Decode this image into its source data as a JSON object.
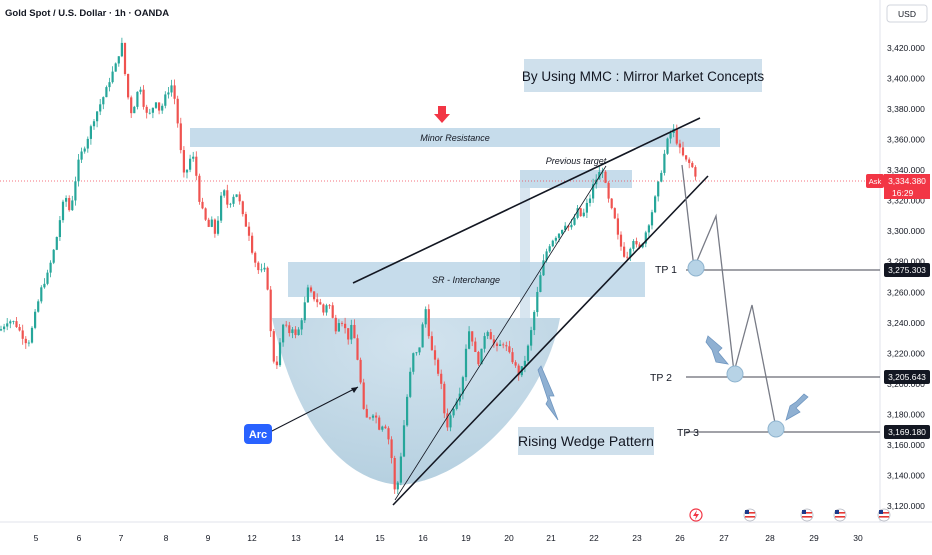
{
  "header": {
    "symbol_title": "Gold Spot / U.S. Dollar · 1h · OANDA",
    "currency": "USD"
  },
  "colors": {
    "up": "#26a69a",
    "down": "#ef5350",
    "zone": "#b9d4e6",
    "arc_fill": "#a9c9dc",
    "label_blue": "#2962ff",
    "ask_red": "#f23645",
    "line_dark": "#131722"
  },
  "annotations": {
    "mmc_title": "By Using MMC : Mirror Market Concepts",
    "minor_resistance": "Minor Resistance",
    "previous_target": "Previous target",
    "sr_interchange": "SR - Interchange",
    "arc_label": "Arc",
    "wedge_label": "Rising Wedge Pattern",
    "tp1": "TP 1",
    "tp2": "TP 2",
    "tp3": "TP 3"
  },
  "price_axis": {
    "ticks": [
      "3,420.000",
      "3,400.000",
      "3,380.000",
      "3,360.000",
      "3,340.000",
      "3,320.000",
      "3,300.000",
      "3,280.000",
      "3,260.000",
      "3,240.000",
      "3,220.000",
      "3,200.000",
      "3,180.000",
      "3,160.000",
      "3,140.000",
      "3,120.000"
    ],
    "ask_label": "Ask",
    "ask_price": "3,334.380",
    "countdown": "16:29",
    "tp1_price": "3,275.303",
    "tp2_price": "3,205.643",
    "tp3_price": "3,169.180"
  },
  "time_axis": {
    "labels": [
      "5",
      "6",
      "7",
      "8",
      "9",
      "12",
      "13",
      "14",
      "15",
      "16",
      "19",
      "20",
      "21",
      "22",
      "23",
      "26",
      "27",
      "28",
      "29",
      "30"
    ]
  },
  "chart_data": {
    "type": "candlestick",
    "title": "Gold Spot / U.S. Dollar · 1h · OANDA",
    "ylim": [
      3110,
      3435
    ],
    "y_ticks": [
      3420,
      3400,
      3380,
      3360,
      3340,
      3320,
      3300,
      3280,
      3260,
      3240,
      3220,
      3200,
      3180,
      3160,
      3140,
      3120
    ],
    "x_labels": [
      "5",
      "6",
      "7",
      "8",
      "9",
      "12",
      "13",
      "14",
      "15",
      "16",
      "19",
      "20",
      "21",
      "22",
      "23",
      "26",
      "27",
      "28",
      "29",
      "30"
    ],
    "price_path": [
      [
        0,
        3235
      ],
      [
        8,
        3242
      ],
      [
        15,
        3240
      ],
      [
        22,
        3232
      ],
      [
        28,
        3226
      ],
      [
        32,
        3236
      ],
      [
        36,
        3248
      ],
      [
        42,
        3264
      ],
      [
        48,
        3272
      ],
      [
        54,
        3288
      ],
      [
        58,
        3300
      ],
      [
        62,
        3316
      ],
      [
        66,
        3322
      ],
      [
        70,
        3312
      ],
      [
        74,
        3328
      ],
      [
        78,
        3344
      ],
      [
        82,
        3352
      ],
      [
        86,
        3358
      ],
      [
        90,
        3366
      ],
      [
        94,
        3374
      ],
      [
        98,
        3380
      ],
      [
        102,
        3386
      ],
      [
        106,
        3392
      ],
      [
        110,
        3400
      ],
      [
        114,
        3406
      ],
      [
        118,
        3412
      ],
      [
        121,
        3428
      ],
      [
        124,
        3408
      ],
      [
        128,
        3388
      ],
      [
        132,
        3376
      ],
      [
        136,
        3388
      ],
      [
        140,
        3396
      ],
      [
        144,
        3382
      ],
      [
        148,
        3374
      ],
      [
        152,
        3380
      ],
      [
        156,
        3386
      ],
      [
        160,
        3378
      ],
      [
        164,
        3386
      ],
      [
        168,
        3392
      ],
      [
        172,
        3396
      ],
      [
        176,
        3382
      ],
      [
        180,
        3356
      ],
      [
        184,
        3336
      ],
      [
        188,
        3342
      ],
      [
        192,
        3352
      ],
      [
        196,
        3338
      ],
      [
        200,
        3318
      ],
      [
        204,
        3310
      ],
      [
        208,
        3302
      ],
      [
        212,
        3306
      ],
      [
        216,
        3296
      ],
      [
        220,
        3320
      ],
      [
        224,
        3326
      ],
      [
        228,
        3316
      ],
      [
        232,
        3322
      ],
      [
        236,
        3326
      ],
      [
        240,
        3318
      ],
      [
        244,
        3306
      ],
      [
        248,
        3302
      ],
      [
        252,
        3288
      ],
      [
        256,
        3278
      ],
      [
        260,
        3272
      ],
      [
        264,
        3276
      ],
      [
        268,
        3262
      ],
      [
        272,
        3220
      ],
      [
        276,
        3210
      ],
      [
        280,
        3226
      ],
      [
        284,
        3242
      ],
      [
        288,
        3232
      ],
      [
        292,
        3238
      ],
      [
        296,
        3230
      ],
      [
        300,
        3238
      ],
      [
        304,
        3250
      ],
      [
        308,
        3262
      ],
      [
        312,
        3258
      ],
      [
        316,
        3255
      ],
      [
        320,
        3252
      ],
      [
        324,
        3246
      ],
      [
        328,
        3256
      ],
      [
        332,
        3244
      ],
      [
        336,
        3236
      ],
      [
        340,
        3244
      ],
      [
        344,
        3238
      ],
      [
        348,
        3230
      ],
      [
        352,
        3238
      ],
      [
        356,
        3224
      ],
      [
        360,
        3204
      ],
      [
        364,
        3180
      ],
      [
        368,
        3176
      ],
      [
        372,
        3182
      ],
      [
        376,
        3178
      ],
      [
        380,
        3170
      ],
      [
        384,
        3176
      ],
      [
        388,
        3166
      ],
      [
        392,
        3150
      ],
      [
        395,
        3128
      ],
      [
        398,
        3136
      ],
      [
        402,
        3160
      ],
      [
        406,
        3186
      ],
      [
        410,
        3206
      ],
      [
        414,
        3222
      ],
      [
        418,
        3218
      ],
      [
        422,
        3236
      ],
      [
        426,
        3250
      ],
      [
        430,
        3226
      ],
      [
        434,
        3216
      ],
      [
        438,
        3208
      ],
      [
        442,
        3196
      ],
      [
        446,
        3170
      ],
      [
        450,
        3178
      ],
      [
        454,
        3186
      ],
      [
        458,
        3192
      ],
      [
        462,
        3200
      ],
      [
        466,
        3224
      ],
      [
        470,
        3238
      ],
      [
        474,
        3222
      ],
      [
        478,
        3214
      ],
      [
        482,
        3222
      ],
      [
        486,
        3238
      ],
      [
        490,
        3232
      ],
      [
        494,
        3226
      ],
      [
        498,
        3222
      ],
      [
        502,
        3228
      ],
      [
        506,
        3224
      ],
      [
        510,
        3218
      ],
      [
        514,
        3214
      ],
      [
        518,
        3206
      ],
      [
        522,
        3210
      ],
      [
        526,
        3218
      ],
      [
        530,
        3230
      ],
      [
        534,
        3246
      ],
      [
        538,
        3262
      ],
      [
        542,
        3276
      ],
      [
        546,
        3286
      ],
      [
        550,
        3292
      ],
      [
        554,
        3296
      ],
      [
        558,
        3298
      ],
      [
        562,
        3302
      ],
      [
        566,
        3306
      ],
      [
        570,
        3300
      ],
      [
        574,
        3308
      ],
      [
        578,
        3314
      ],
      [
        582,
        3308
      ],
      [
        586,
        3316
      ],
      [
        590,
        3322
      ],
      [
        594,
        3332
      ],
      [
        598,
        3336
      ],
      [
        602,
        3342
      ],
      [
        606,
        3328
      ],
      [
        610,
        3316
      ],
      [
        614,
        3310
      ],
      [
        618,
        3296
      ],
      [
        622,
        3288
      ],
      [
        626,
        3282
      ],
      [
        630,
        3290
      ],
      [
        634,
        3296
      ],
      [
        638,
        3286
      ],
      [
        642,
        3292
      ],
      [
        646,
        3300
      ],
      [
        650,
        3308
      ],
      [
        654,
        3318
      ],
      [
        658,
        3330
      ],
      [
        662,
        3342
      ],
      [
        666,
        3356
      ],
      [
        670,
        3364
      ],
      [
        674,
        3366
      ],
      [
        678,
        3356
      ],
      [
        682,
        3350
      ],
      [
        686,
        3346
      ],
      [
        690,
        3344
      ],
      [
        694,
        3340
      ],
      [
        697,
        3334
      ]
    ],
    "zones": [
      {
        "label": "Minor Resistance",
        "x1": 190,
        "x2": 720,
        "y1": 3355,
        "y2": 3367
      },
      {
        "label": "Previous target",
        "x1": 520,
        "x2": 632,
        "y1": 3326,
        "y2": 3344
      },
      {
        "label": "SR - Interchange",
        "x1": 288,
        "x2": 645,
        "y1": 3261,
        "y2": 3280
      }
    ],
    "projection": {
      "path": [
        [
          682,
          3350
        ],
        [
          694,
          3275
        ],
        [
          716,
          3305
        ],
        [
          734,
          3205
        ],
        [
          752,
          3252
        ],
        [
          776,
          3169
        ]
      ],
      "targets": [
        {
          "label": "TP 1",
          "price": 3275.303
        },
        {
          "label": "TP 2",
          "price": 3205.643
        },
        {
          "label": "TP 3",
          "price": 3169.18
        }
      ]
    },
    "current_price": 3334.38
  }
}
